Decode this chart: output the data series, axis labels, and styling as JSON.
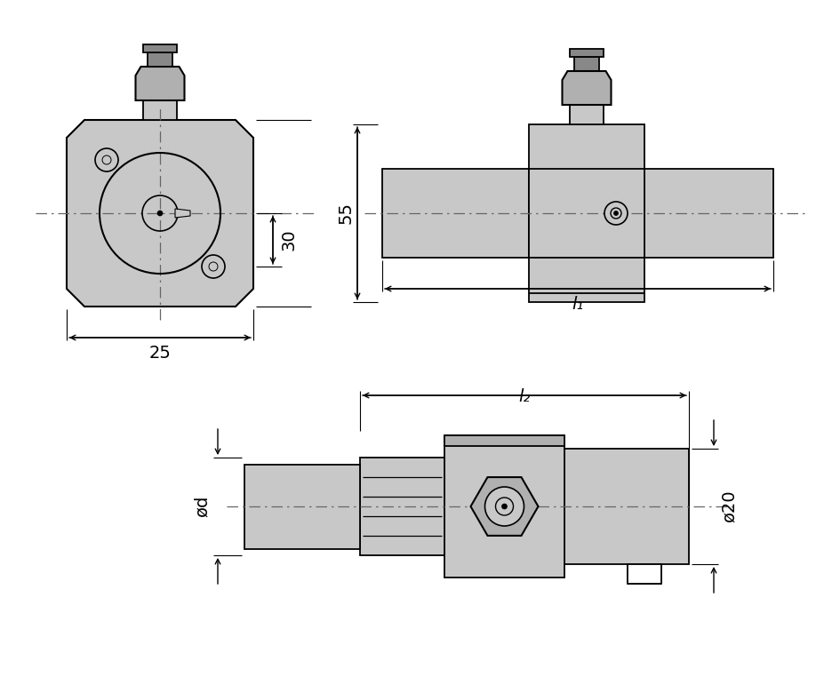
{
  "bg_color": "#ffffff",
  "gray_light": "#c8c8c8",
  "gray_mid": "#b0b0b0",
  "gray_dark": "#888888",
  "line_color": "#000000",
  "dash_color": "#666666",
  "label_30": "30",
  "label_25": "25",
  "label_55": "55",
  "label_l1": "l₁",
  "label_l2": "l₂",
  "label_od": "ød",
  "label_020": "ø20"
}
